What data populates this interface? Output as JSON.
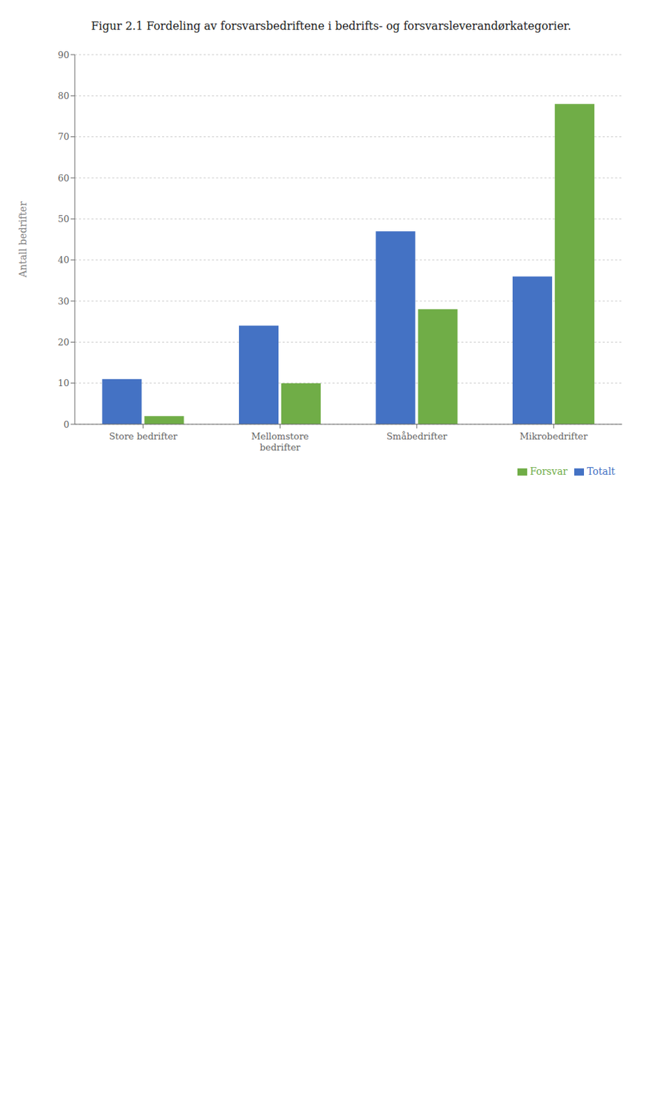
{
  "chart_data": {
    "type": "bar",
    "title": "Figur 2.1 Fordeling av forsvarsbedriftene i bedrifts- og forsvarsleverandørkategorier.",
    "categories": [
      "Store bedrifter",
      "Mellomstore\nbedrifter",
      "Småbedrifter",
      "Mikrobedrifter"
    ],
    "series": [
      {
        "name": "Totalt",
        "color": "#4472C4",
        "values": [
          11,
          24,
          47,
          36
        ]
      },
      {
        "name": "Forsvar",
        "color": "#70AD47",
        "values": [
          2,
          10,
          28,
          78
        ]
      }
    ],
    "ylabel": "Antall bedrifter",
    "ylim": [
      0,
      90
    ],
    "yticks": [
      0,
      10,
      20,
      30,
      40,
      50,
      60,
      70,
      80,
      90
    ],
    "grid": true,
    "legend": "lower right"
  }
}
